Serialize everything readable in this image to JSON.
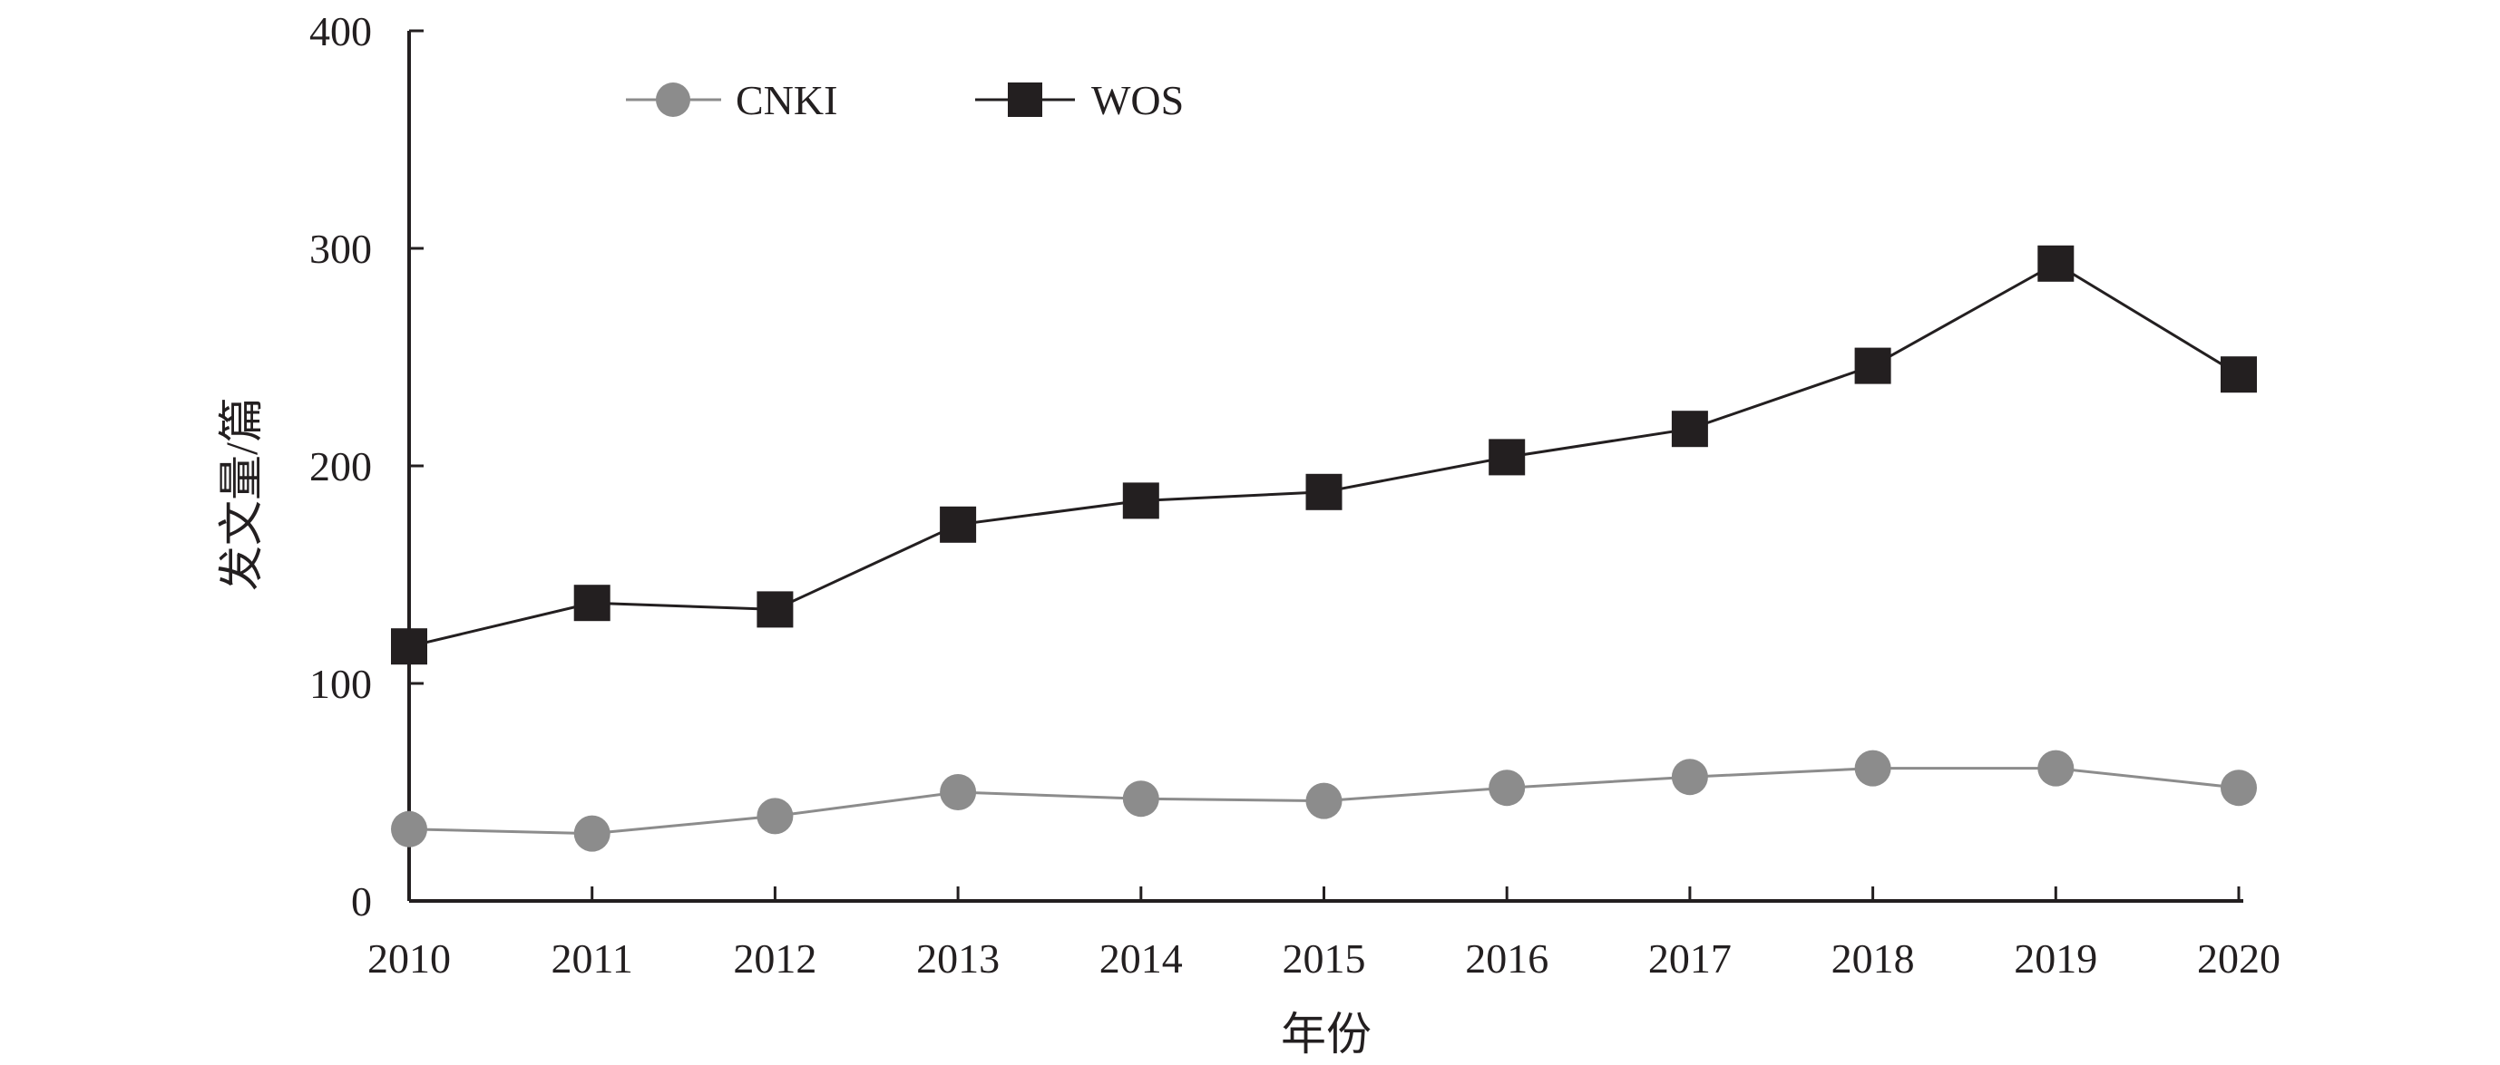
{
  "chart_data": {
    "type": "line",
    "title": "",
    "xlabel": "年份",
    "ylabel": "发文量/篇",
    "categories": [
      "2010",
      "2011",
      "2012",
      "2013",
      "2014",
      "2015",
      "2016",
      "2017",
      "2018",
      "2019",
      "2020"
    ],
    "ylim": [
      0,
      400
    ],
    "yticks": [
      "0",
      "100",
      "200",
      "300",
      "400"
    ],
    "grid": false,
    "legend_position": "top-left",
    "series": [
      {
        "name": "CNKI",
        "marker": "circle",
        "color": "#8c8c8c",
        "values": [
          33,
          31,
          39,
          50,
          47,
          46,
          52,
          57,
          61,
          61,
          52
        ]
      },
      {
        "name": "WOS",
        "marker": "square",
        "color": "#231f20",
        "values": [
          117,
          137,
          134,
          173,
          184,
          188,
          204,
          217,
          246,
          293,
          242
        ]
      }
    ]
  }
}
